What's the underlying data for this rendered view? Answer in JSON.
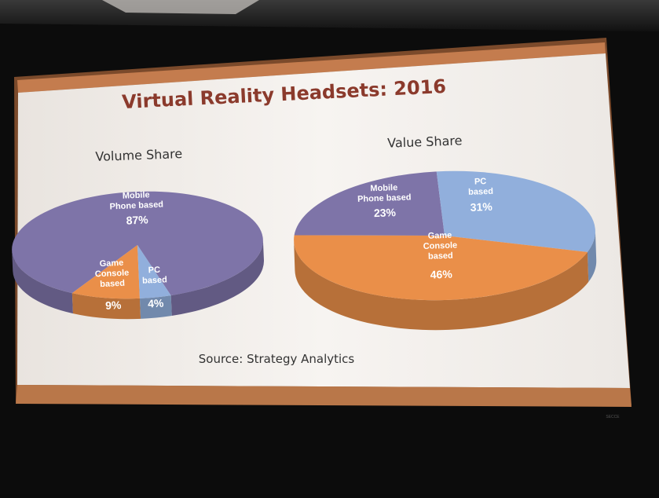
{
  "slide": {
    "title": "Virtual Reality Headsets:  2016",
    "source": "Source: Strategy Analytics",
    "corner_mark": "SECCE"
  },
  "colors": {
    "mobile": "#7e74a8",
    "pc": "#91afdc",
    "console": "#ea8f49",
    "title": "#8b3a2c",
    "slide_bg": "#f6f2ee",
    "frame": "#7a4a2a"
  },
  "chart_data": [
    {
      "type": "pie",
      "title": "Volume Share",
      "slices": [
        {
          "label_lines": [
            "Mobile",
            "Phone based"
          ],
          "value_text": "87%",
          "value": 87,
          "color": "#7e74a8"
        },
        {
          "label_lines": [
            "Game",
            "Console",
            "based"
          ],
          "value_text": "9%",
          "value": 9,
          "color": "#ea8f49"
        },
        {
          "label_lines": [
            "PC",
            "based"
          ],
          "value_text": "4%",
          "value": 4,
          "color": "#91afdc"
        }
      ]
    },
    {
      "type": "pie",
      "title": "Value Share",
      "slices": [
        {
          "label_lines": [
            "Mobile",
            "Phone based"
          ],
          "value_text": "23%",
          "value": 23,
          "color": "#7e74a8"
        },
        {
          "label_lines": [
            "PC",
            "based"
          ],
          "value_text": "31%",
          "value": 31,
          "color": "#91afdc"
        },
        {
          "label_lines": [
            "Game",
            "Console",
            "based"
          ],
          "value_text": "46%",
          "value": 46,
          "color": "#ea8f49"
        }
      ]
    }
  ]
}
